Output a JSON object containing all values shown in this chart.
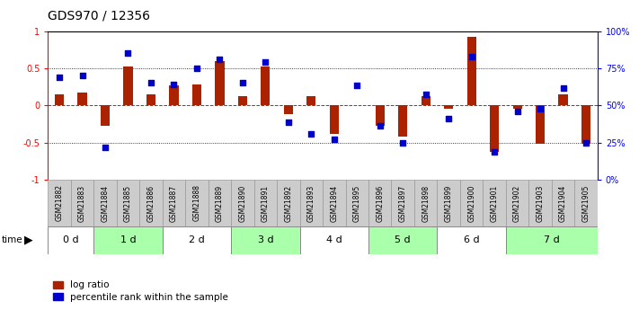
{
  "title": "GDS970 / 12356",
  "samples": [
    "GSM21882",
    "GSM21883",
    "GSM21884",
    "GSM21885",
    "GSM21886",
    "GSM21887",
    "GSM21888",
    "GSM21889",
    "GSM21890",
    "GSM21891",
    "GSM21892",
    "GSM21893",
    "GSM21894",
    "GSM21895",
    "GSM21896",
    "GSM21897",
    "GSM21898",
    "GSM21899",
    "GSM21900",
    "GSM21901",
    "GSM21902",
    "GSM21903",
    "GSM21904",
    "GSM21905"
  ],
  "log_ratio": [
    0.15,
    0.17,
    -0.27,
    0.52,
    0.15,
    0.27,
    0.28,
    0.6,
    0.12,
    0.52,
    -0.12,
    0.12,
    -0.38,
    0.0,
    -0.27,
    -0.42,
    0.12,
    -0.04,
    0.92,
    -0.62,
    -0.04,
    -0.52,
    0.15,
    -0.52
  ],
  "percentile": [
    0.38,
    0.4,
    -0.56,
    0.7,
    0.3,
    0.28,
    0.5,
    0.62,
    0.3,
    0.58,
    -0.22,
    -0.38,
    -0.45,
    0.27,
    -0.28,
    -0.5,
    0.15,
    -0.18,
    0.65,
    -0.62,
    -0.08,
    -0.04,
    0.23,
    -0.5
  ],
  "time_groups": [
    {
      "label": "0 d",
      "start": 0,
      "end": 2,
      "color": "#ffffff"
    },
    {
      "label": "1 d",
      "start": 2,
      "end": 5,
      "color": "#aaffaa"
    },
    {
      "label": "2 d",
      "start": 5,
      "end": 8,
      "color": "#ffffff"
    },
    {
      "label": "3 d",
      "start": 8,
      "end": 11,
      "color": "#aaffaa"
    },
    {
      "label": "4 d",
      "start": 11,
      "end": 14,
      "color": "#ffffff"
    },
    {
      "label": "5 d",
      "start": 14,
      "end": 17,
      "color": "#aaffaa"
    },
    {
      "label": "6 d",
      "start": 17,
      "end": 20,
      "color": "#ffffff"
    },
    {
      "label": "7 d",
      "start": 20,
      "end": 24,
      "color": "#aaffaa"
    }
  ],
  "bar_color": "#aa2200",
  "dot_color": "#0000cc",
  "ylim_left": [
    -1,
    1
  ],
  "ylim_right": [
    0,
    100
  ],
  "yticks_left": [
    -1,
    -0.5,
    0,
    0.5,
    1
  ],
  "yticks_right": [
    0,
    25,
    50,
    75,
    100
  ],
  "yticklabels_right": [
    "0%",
    "25%",
    "50%",
    "75%",
    "100%"
  ],
  "background_color": "#ffffff",
  "sample_bg_color": "#cccccc",
  "time_row_border_color": "#888888"
}
